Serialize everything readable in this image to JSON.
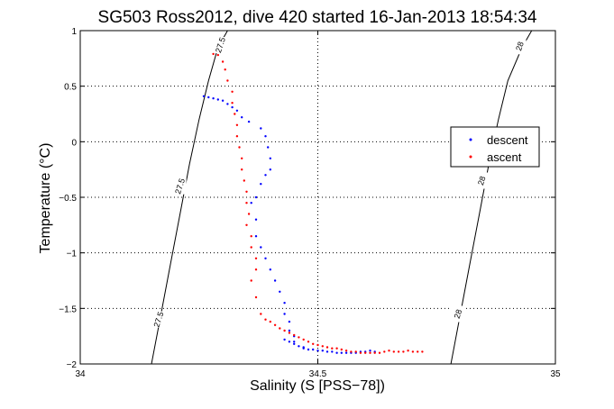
{
  "chart_data": {
    "type": "scatter",
    "title": "SG503 Ross2012, dive 420 started 16-Jan-2013 18:54:34",
    "xlabel": "Salinity (S [PSS−78])",
    "ylabel": "Temperature (°C)",
    "xlim": [
      34,
      35
    ],
    "ylim": [
      -2,
      1
    ],
    "xticks": [
      34,
      34.5,
      35
    ],
    "xtick_labels": [
      "34",
      "34.5",
      "35"
    ],
    "yticks": [
      -2,
      -1.5,
      -1,
      -0.5,
      0,
      0.5,
      1
    ],
    "ytick_labels": [
      "−2",
      "−1.5",
      "−1",
      "−0.5",
      "0",
      "0.5",
      "1"
    ],
    "grid": true,
    "legend_position": "right",
    "series": [
      {
        "name": "descent",
        "color": "#0000ff",
        "marker": "dot",
        "x": [
          34.26,
          34.27,
          34.28,
          34.29,
          34.3,
          34.31,
          34.32,
          34.33,
          34.34,
          34.355,
          34.38,
          34.39,
          34.395,
          34.4,
          34.4,
          34.39,
          34.38,
          34.37,
          34.36,
          34.37,
          34.37,
          34.38,
          34.39,
          34.4,
          34.41,
          34.42,
          34.43,
          34.43,
          34.44,
          34.44,
          34.45,
          34.45,
          34.43,
          34.44,
          34.45,
          34.46,
          34.47,
          34.47,
          34.48,
          34.49,
          34.5,
          34.51,
          34.52,
          34.53,
          34.54,
          34.55,
          34.56,
          34.57,
          34.58,
          34.59,
          34.6,
          34.61,
          34.62
        ],
        "y": [
          0.41,
          0.4,
          0.39,
          0.38,
          0.37,
          0.34,
          0.31,
          0.28,
          0.22,
          0.18,
          0.12,
          0.05,
          -0.05,
          -0.15,
          -0.25,
          -0.3,
          -0.38,
          -0.5,
          -0.55,
          -0.7,
          -0.85,
          -0.95,
          -1.05,
          -1.15,
          -1.25,
          -1.35,
          -1.45,
          -1.55,
          -1.62,
          -1.7,
          -1.75,
          -1.8,
          -1.78,
          -1.8,
          -1.82,
          -1.84,
          -1.85,
          -1.86,
          -1.87,
          -1.87,
          -1.88,
          -1.88,
          -1.89,
          -1.89,
          -1.9,
          -1.9,
          -1.9,
          -1.9,
          -1.9,
          -1.89,
          -1.89,
          -1.88,
          -1.89
        ]
      },
      {
        "name": "ascent",
        "color": "#ff0000",
        "marker": "dot",
        "x": [
          34.28,
          34.29,
          34.3,
          34.305,
          34.31,
          34.32,
          34.32,
          34.325,
          34.33,
          34.33,
          34.335,
          34.34,
          34.34,
          34.345,
          34.35,
          34.35,
          34.355,
          34.35,
          34.36,
          34.36,
          34.37,
          34.37,
          34.36,
          34.37,
          34.38,
          34.39,
          34.4,
          34.41,
          34.42,
          34.43,
          34.44,
          34.45,
          34.46,
          34.47,
          34.48,
          34.49,
          34.5,
          34.51,
          34.52,
          34.53,
          34.54,
          34.55,
          34.56,
          34.57,
          34.58,
          34.59,
          34.6,
          34.61,
          34.62,
          34.63,
          34.64,
          34.65,
          34.66,
          34.67,
          34.68,
          34.69,
          34.7,
          34.71,
          34.72
        ],
        "y": [
          0.79,
          0.78,
          0.72,
          0.65,
          0.55,
          0.45,
          0.35,
          0.25,
          0.15,
          0.05,
          -0.05,
          -0.15,
          -0.25,
          -0.35,
          -0.45,
          -0.55,
          -0.65,
          -0.75,
          -0.85,
          -0.95,
          -1.05,
          -1.15,
          -1.25,
          -1.4,
          -1.55,
          -1.6,
          -1.62,
          -1.65,
          -1.68,
          -1.7,
          -1.72,
          -1.74,
          -1.76,
          -1.78,
          -1.8,
          -1.82,
          -1.83,
          -1.84,
          -1.85,
          -1.86,
          -1.86,
          -1.87,
          -1.88,
          -1.89,
          -1.89,
          -1.9,
          -1.9,
          -1.9,
          -1.9,
          -1.9,
          -1.89,
          -1.88,
          -1.89,
          -1.89,
          -1.89,
          -1.88,
          -1.89,
          -1.89,
          -1.89
        ]
      }
    ],
    "contours": [
      {
        "label": "27.5",
        "x": [
          34.15,
          34.17,
          34.19,
          34.21,
          34.23,
          34.25,
          34.27,
          34.29,
          34.31
        ],
        "y": [
          -2.0,
          -1.55,
          -1.1,
          -0.65,
          -0.2,
          0.2,
          0.55,
          0.85,
          1.0
        ],
        "labels_at": [
          [
            34.165,
            -1.6
          ],
          [
            34.21,
            -0.4
          ],
          [
            34.295,
            0.87
          ]
        ]
      },
      {
        "label": "28",
        "x": [
          34.78,
          34.8,
          34.82,
          34.84,
          34.86,
          34.88,
          34.9,
          34.93,
          34.95
        ],
        "y": [
          -2.0,
          -1.55,
          -1.1,
          -0.65,
          -0.2,
          0.2,
          0.55,
          0.85,
          1.0
        ],
        "labels_at": [
          [
            34.795,
            -1.55
          ],
          [
            34.845,
            -0.35
          ],
          [
            34.925,
            0.86
          ]
        ]
      }
    ]
  }
}
